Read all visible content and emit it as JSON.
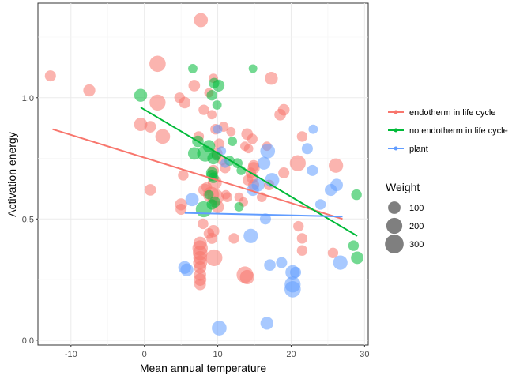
{
  "chart_data": {
    "type": "scatter",
    "xlabel": "Mean annual temperature",
    "ylabel": "Activation energy",
    "xlim": [
      -14.5,
      30.5
    ],
    "ylim": [
      -0.02,
      1.39
    ],
    "x_ticks": [
      -10,
      0,
      10,
      20,
      30
    ],
    "x_tick_labels": [
      "-10",
      "0",
      "10",
      "20",
      "30"
    ],
    "y_ticks": [
      0.0,
      0.5,
      1.0
    ],
    "y_tick_labels": [
      "0.0",
      "0.5",
      "1.0"
    ],
    "grid": true,
    "legend_position": "right",
    "colors": {
      "endotherm in life cycle": "#F8766D",
      "no endotherm in life cycle": "#00BA38",
      "plant": "#619CFF"
    },
    "legend_color": {
      "title": "",
      "entries": [
        "endotherm in life cycle",
        "no endotherm in life cycle",
        "plant"
      ]
    },
    "legend_size": {
      "title": "Weight",
      "entries": [
        {
          "label": "100",
          "value": 100
        },
        {
          "label": "200",
          "value": 200
        },
        {
          "label": "300",
          "value": 300
        }
      ]
    },
    "series": [
      {
        "name": "endotherm in life cycle",
        "trend": [
          [
            -12.5,
            0.87
          ],
          [
            27,
            0.5
          ]
        ],
        "points": [
          [
            -12.8,
            1.09,
            70
          ],
          [
            -7.5,
            1.03,
            90
          ],
          [
            -0.5,
            0.89,
            120
          ],
          [
            0.8,
            0.88,
            80
          ],
          [
            0.8,
            0.62,
            80
          ],
          [
            1.8,
            0.98,
            200
          ],
          [
            2.5,
            0.84,
            160
          ],
          [
            1.8,
            1.14,
            210
          ],
          [
            4.8,
            1.0,
            60
          ],
          [
            5.5,
            0.98,
            80
          ],
          [
            5.0,
            0.56,
            90
          ],
          [
            5.0,
            0.54,
            70
          ],
          [
            5.3,
            0.68,
            60
          ],
          [
            7.7,
            1.32,
            140
          ],
          [
            6.8,
            1.05,
            80
          ],
          [
            7.4,
            0.84,
            60
          ],
          [
            8.1,
            0.95,
            60
          ],
          [
            8.2,
            0.62,
            100
          ],
          [
            8.8,
            1.02,
            40
          ],
          [
            9.4,
            1.08,
            40
          ],
          [
            9.2,
            0.93,
            40
          ],
          [
            9.7,
            0.87,
            60
          ],
          [
            9.9,
            0.77,
            70
          ],
          [
            9.4,
            0.7,
            70
          ],
          [
            9.6,
            0.65,
            140
          ],
          [
            9.1,
            0.6,
            200
          ],
          [
            9.7,
            0.59,
            210
          ],
          [
            10.0,
            0.55,
            100
          ],
          [
            9.4,
            0.45,
            90
          ],
          [
            9.5,
            0.34,
            220
          ],
          [
            10.2,
            0.81,
            60
          ],
          [
            10.6,
            0.74,
            40
          ],
          [
            11.1,
            0.6,
            40
          ],
          [
            8.0,
            0.48,
            60
          ],
          [
            8.8,
            0.44,
            60
          ],
          [
            7.6,
            0.27,
            90
          ],
          [
            7.6,
            0.3,
            100
          ],
          [
            7.6,
            0.34,
            130
          ],
          [
            7.6,
            0.36,
            160
          ],
          [
            7.6,
            0.38,
            180
          ],
          [
            7.6,
            0.4,
            120
          ],
          [
            7.6,
            0.23,
            80
          ],
          [
            7.6,
            0.25,
            100
          ],
          [
            7.6,
            0.32,
            140
          ],
          [
            13.7,
            0.27,
            220
          ],
          [
            14.0,
            0.26,
            150
          ],
          [
            14.0,
            0.85,
            80
          ],
          [
            14.7,
            0.83,
            60
          ],
          [
            14.2,
            0.79,
            40
          ],
          [
            14.9,
            0.72,
            70
          ],
          [
            14.9,
            0.71,
            90
          ],
          [
            14.5,
            0.69,
            60
          ],
          [
            14.7,
            0.67,
            80
          ],
          [
            14.9,
            0.64,
            70
          ],
          [
            14.1,
            0.66,
            60
          ],
          [
            11.3,
            0.59,
            50
          ],
          [
            12.9,
            0.59,
            40
          ],
          [
            16.0,
            0.59,
            50
          ],
          [
            13.7,
            0.8,
            40
          ],
          [
            19.0,
            0.95,
            80
          ],
          [
            17.3,
            1.08,
            110
          ],
          [
            16.7,
            0.8,
            40
          ],
          [
            18.5,
            0.93,
            80
          ],
          [
            20.9,
            0.73,
            200
          ],
          [
            19.0,
            0.69,
            70
          ],
          [
            21.0,
            0.47,
            60
          ],
          [
            21.5,
            0.42,
            60
          ],
          [
            21.5,
            0.37,
            60
          ],
          [
            21.5,
            0.84,
            60
          ],
          [
            26.1,
            0.72,
            150
          ],
          [
            25.7,
            0.36,
            60
          ],
          [
            17.0,
            0.64,
            60
          ],
          [
            11.8,
            0.86,
            40
          ],
          [
            13.5,
            0.57,
            40
          ],
          [
            10.8,
            0.88,
            50
          ],
          [
            8.5,
            0.63,
            60
          ],
          [
            11.0,
            0.71,
            60
          ],
          [
            9.2,
            0.42,
            70
          ],
          [
            12.2,
            0.42,
            60
          ]
        ]
      },
      {
        "name": "no endotherm in life cycle",
        "trend": [
          [
            -0.5,
            0.96
          ],
          [
            29,
            0.43
          ]
        ],
        "points": [
          [
            -0.5,
            1.01,
            110
          ],
          [
            6.6,
            1.12,
            40
          ],
          [
            9.5,
            1.06,
            60
          ],
          [
            10.1,
            1.05,
            90
          ],
          [
            9.2,
            1.01,
            60
          ],
          [
            7.3,
            0.82,
            80
          ],
          [
            6.8,
            0.77,
            100
          ],
          [
            8.3,
            0.77,
            210
          ],
          [
            8.8,
            0.8,
            100
          ],
          [
            9.4,
            0.75,
            90
          ],
          [
            9.2,
            0.69,
            80
          ],
          [
            9.2,
            0.68,
            70
          ],
          [
            9.4,
            0.67,
            60
          ],
          [
            8.8,
            0.6,
            40
          ],
          [
            9.6,
            0.57,
            70
          ],
          [
            9.2,
            0.56,
            60
          ],
          [
            8.1,
            0.54,
            200
          ],
          [
            9.8,
            0.76,
            40
          ],
          [
            11.6,
            0.74,
            50
          ],
          [
            12.7,
            0.73,
            50
          ],
          [
            12.0,
            0.82,
            40
          ],
          [
            13.2,
            0.7,
            40
          ],
          [
            14.8,
            1.12,
            30
          ],
          [
            9.9,
            0.97,
            40
          ],
          [
            28.9,
            0.6,
            60
          ],
          [
            28.5,
            0.39,
            60
          ],
          [
            29.0,
            0.34,
            100
          ],
          [
            12.9,
            0.55,
            40
          ]
        ]
      },
      {
        "name": "plant",
        "trend": [
          [
            5.5,
            0.525
          ],
          [
            27,
            0.51
          ]
        ],
        "points": [
          [
            6.5,
            0.58,
            120
          ],
          [
            5.5,
            0.3,
            110
          ],
          [
            5.8,
            0.29,
            110
          ],
          [
            10.2,
            0.05,
            160
          ],
          [
            14.5,
            0.43,
            150
          ],
          [
            16.8,
            0.78,
            160
          ],
          [
            16.3,
            0.73,
            110
          ],
          [
            17.4,
            0.66,
            150
          ],
          [
            15.5,
            0.64,
            110
          ],
          [
            14.8,
            0.62,
            90
          ],
          [
            16.5,
            0.5,
            70
          ],
          [
            17.1,
            0.31,
            80
          ],
          [
            16.7,
            0.07,
            110
          ],
          [
            18.7,
            0.32,
            70
          ],
          [
            20.2,
            0.28,
            150
          ],
          [
            20.2,
            0.23,
            200
          ],
          [
            20.2,
            0.21,
            210
          ],
          [
            20.6,
            0.28,
            70
          ],
          [
            22.2,
            0.79,
            70
          ],
          [
            23.0,
            0.87,
            40
          ],
          [
            22.9,
            0.7,
            70
          ],
          [
            24.0,
            0.56,
            60
          ],
          [
            25.4,
            0.62,
            90
          ],
          [
            26.2,
            0.64,
            100
          ],
          [
            26.7,
            0.32,
            150
          ],
          [
            10.0,
            0.87,
            40
          ],
          [
            10.5,
            0.78,
            40
          ],
          [
            11.0,
            0.73,
            40
          ]
        ]
      }
    ]
  }
}
